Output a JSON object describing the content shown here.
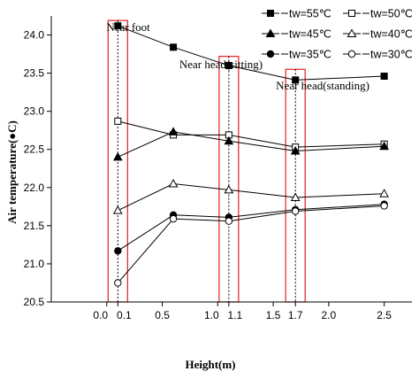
{
  "chart_data": {
    "type": "line",
    "xlabel": "Height(m)",
    "ylabel": "Air temperature(●C)",
    "xlim": [
      -0.5,
      2.75
    ],
    "ylim": [
      20.5,
      24.25
    ],
    "x_ticks": [
      {
        "value": 0.0,
        "label": "0.0"
      },
      {
        "value": 0.1,
        "label": "0.1"
      },
      {
        "value": 0.5,
        "label": "0.5"
      },
      {
        "value": 1.0,
        "label": "1.0"
      },
      {
        "value": 1.1,
        "label": "1.1"
      },
      {
        "value": 1.5,
        "label": "1.5"
      },
      {
        "value": 1.7,
        "label": "1.7"
      },
      {
        "value": 2.0,
        "label": "2.0"
      },
      {
        "value": 2.5,
        "label": "2.5"
      }
    ],
    "y_ticks": [
      20.5,
      21.0,
      21.5,
      22.0,
      22.5,
      23.0,
      23.5,
      24.0
    ],
    "grid": false,
    "legend_position": "top-right",
    "x": [
      0.1,
      0.6,
      1.1,
      1.7,
      2.5
    ],
    "series": [
      {
        "name": "tw=55℃",
        "marker": "square-filled",
        "values": [
          24.12,
          23.84,
          23.6,
          23.41,
          23.46
        ]
      },
      {
        "name": "tw=50℃",
        "marker": "square-open",
        "values": [
          22.87,
          22.69,
          22.69,
          22.53,
          22.57
        ]
      },
      {
        "name": "tw=45℃",
        "marker": "triangle-filled",
        "values": [
          22.4,
          22.73,
          22.61,
          22.48,
          22.54
        ]
      },
      {
        "name": "tw=40℃",
        "marker": "triangle-open",
        "values": [
          21.7,
          22.05,
          21.97,
          21.87,
          21.92
        ]
      },
      {
        "name": "tw=35℃",
        "marker": "circle-filled",
        "values": [
          21.17,
          21.64,
          21.61,
          21.71,
          21.78
        ]
      },
      {
        "name": "tw=30℃",
        "marker": "circle-open",
        "values": [
          20.75,
          21.59,
          21.56,
          21.69,
          21.76
        ]
      }
    ],
    "highlights": [
      {
        "x": 0.1,
        "label": "Near foot"
      },
      {
        "x": 1.1,
        "label": "Near head(sitting)"
      },
      {
        "x": 1.7,
        "label": "Near head(standing)"
      }
    ],
    "highlight_color": "#e02020"
  }
}
